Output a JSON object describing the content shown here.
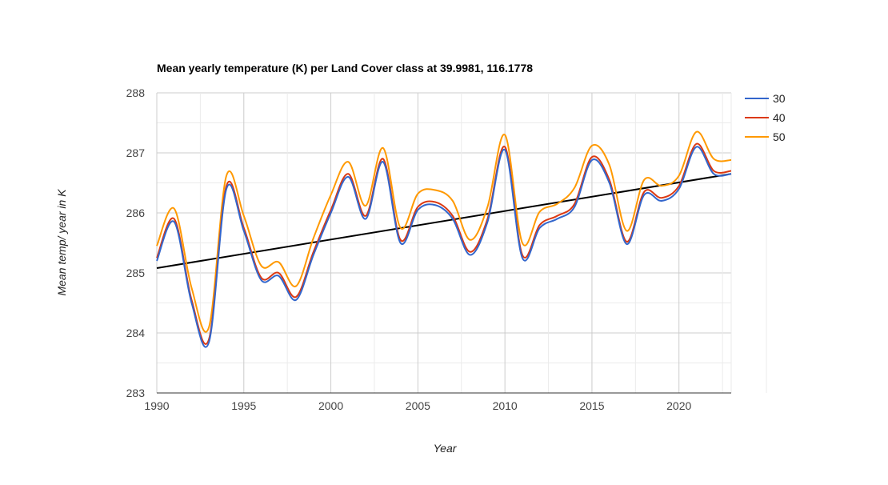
{
  "chart_data": {
    "type": "line",
    "title": "Mean yearly temperature (K) per Land Cover class at 39.9981, 116.1778",
    "xlabel": "Year",
    "ylabel": "Mean temp/ year in K",
    "xlim": [
      1990,
      2023
    ],
    "ylim": [
      283,
      288
    ],
    "x_ticks": [
      "1990",
      "1995",
      "2000",
      "2005",
      "2010",
      "2015",
      "2020"
    ],
    "y_ticks": [
      "283",
      "284",
      "285",
      "286",
      "287",
      "288"
    ],
    "grid": true,
    "legend_position": "right",
    "x": [
      1990,
      1991,
      1992,
      1993,
      1994,
      1995,
      1996,
      1997,
      1998,
      1999,
      2000,
      2001,
      2002,
      2003,
      2004,
      2005,
      2006,
      2007,
      2008,
      2009,
      2010,
      2011,
      2012,
      2013,
      2014,
      2015,
      2016,
      2017,
      2018,
      2019,
      2020,
      2021,
      2022,
      2023
    ],
    "series": [
      {
        "name": "30",
        "color": "#3366cc",
        "values": [
          285.2,
          285.85,
          284.5,
          283.85,
          286.4,
          285.7,
          284.88,
          284.95,
          284.55,
          285.3,
          286.0,
          286.6,
          285.9,
          286.85,
          285.5,
          286.05,
          286.13,
          285.9,
          285.3,
          285.85,
          287.05,
          285.25,
          285.75,
          285.9,
          286.1,
          286.88,
          286.5,
          285.48,
          286.3,
          286.2,
          286.4,
          287.1,
          286.65,
          286.65
        ]
      },
      {
        "name": "40",
        "color": "#dc3912",
        "values": [
          285.25,
          285.9,
          284.55,
          283.9,
          286.45,
          285.75,
          284.92,
          285.0,
          284.6,
          285.35,
          286.05,
          286.65,
          285.95,
          286.9,
          285.55,
          286.1,
          286.18,
          285.95,
          285.35,
          285.9,
          287.1,
          285.3,
          285.8,
          285.95,
          286.15,
          286.93,
          286.55,
          285.52,
          286.35,
          286.25,
          286.45,
          287.15,
          286.7,
          286.7
        ]
      },
      {
        "name": "50",
        "color": "#ff9900",
        "values": [
          285.45,
          286.07,
          284.75,
          284.1,
          286.62,
          285.95,
          285.12,
          285.18,
          284.78,
          285.58,
          286.3,
          286.85,
          286.12,
          287.08,
          285.75,
          286.32,
          286.38,
          286.2,
          285.55,
          286.1,
          287.3,
          285.5,
          286.02,
          286.15,
          286.42,
          287.12,
          286.8,
          285.7,
          286.55,
          286.45,
          286.62,
          287.35,
          286.9,
          286.88
        ]
      }
    ],
    "trendline": {
      "color": "#000000",
      "values": [
        285.08,
        286.65
      ]
    }
  }
}
